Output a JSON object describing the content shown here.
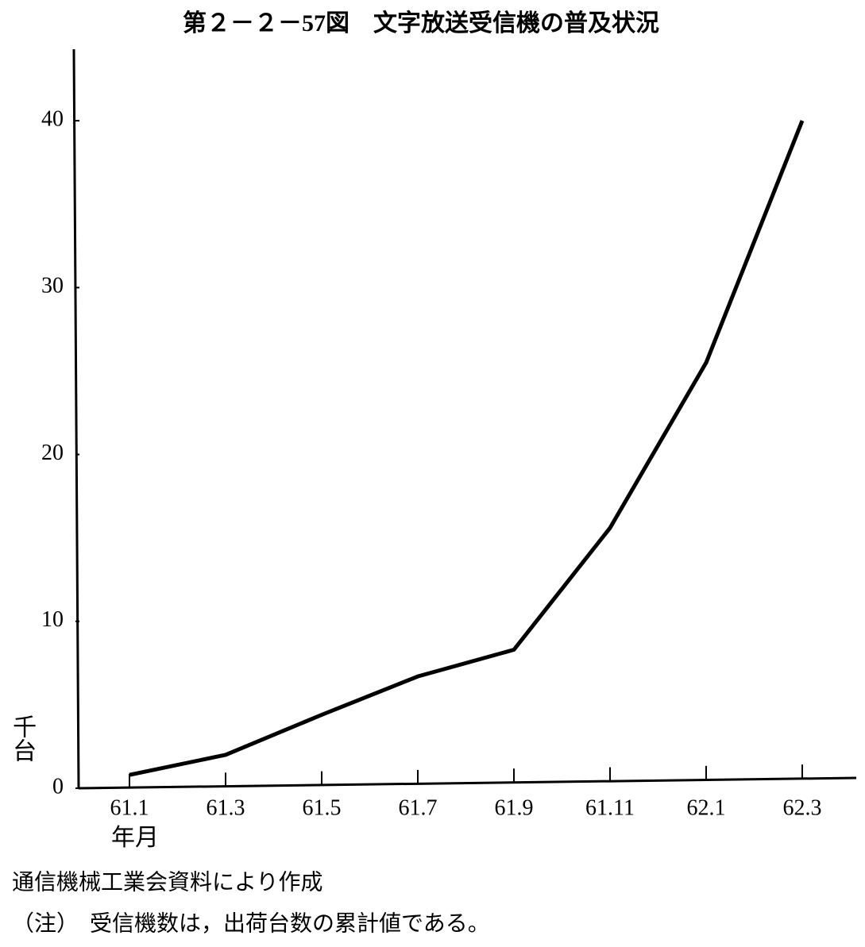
{
  "chart_data": {
    "type": "line",
    "title": "第２－２－57図　文字放送受信機の普及状況",
    "y_label": "千台",
    "x_label": "年月",
    "categories": [
      "61.1",
      "61.3",
      "61.5",
      "61.7",
      "61.9",
      "61.11",
      "62.1",
      "62.3"
    ],
    "values": [
      0.8,
      2.0,
      4.4,
      6.7,
      8.3,
      15.6,
      25.5,
      40
    ],
    "color": "#000000",
    "ylim": [
      0,
      44
    ],
    "yticks": [
      0,
      10,
      20,
      30,
      40
    ],
    "source": "通信機械工業会資料により作成",
    "note": "（注）　受信機数は，出荷台数の累計値である。"
  }
}
